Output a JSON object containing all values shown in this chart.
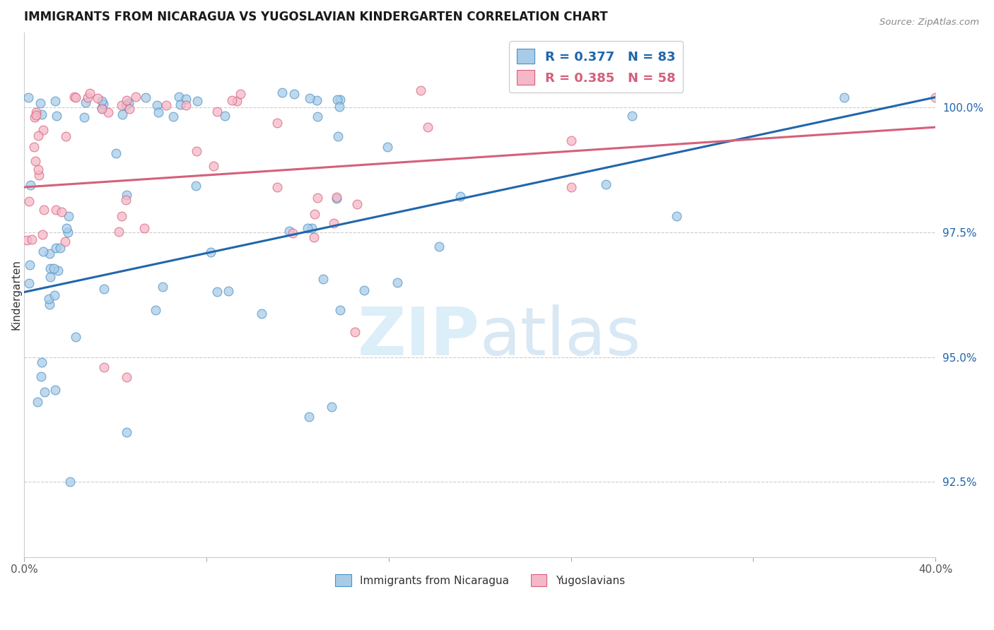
{
  "title": "IMMIGRANTS FROM NICARAGUA VS YUGOSLAVIAN KINDERGARTEN CORRELATION CHART",
  "source": "Source: ZipAtlas.com",
  "ylabel": "Kindergarten",
  "ylabel_right_ticks": [
    "92.5%",
    "95.0%",
    "97.5%",
    "100.0%"
  ],
  "ylabel_right_values": [
    92.5,
    95.0,
    97.5,
    100.0
  ],
  "legend_blue_label": "R = 0.377   N = 83",
  "legend_pink_label": "R = 0.385   N = 58",
  "legend_bottom_blue": "Immigrants from Nicaragua",
  "legend_bottom_pink": "Yugoslavians",
  "blue_color": "#a8cce8",
  "pink_color": "#f5b8c8",
  "blue_edge_color": "#4a90c4",
  "pink_edge_color": "#d4607a",
  "blue_line_color": "#2166ac",
  "pink_line_color": "#d4607a",
  "blue_legend_text": "#2166ac",
  "pink_legend_text": "#d4607a",
  "watermark_color": "#dceef8",
  "xmin": 0.0,
  "xmax": 40.0,
  "ymin": 91.0,
  "ymax": 101.5,
  "blue_intercept": 96.5,
  "blue_slope": 0.055,
  "pink_intercept": 98.4,
  "pink_slope": 0.025
}
